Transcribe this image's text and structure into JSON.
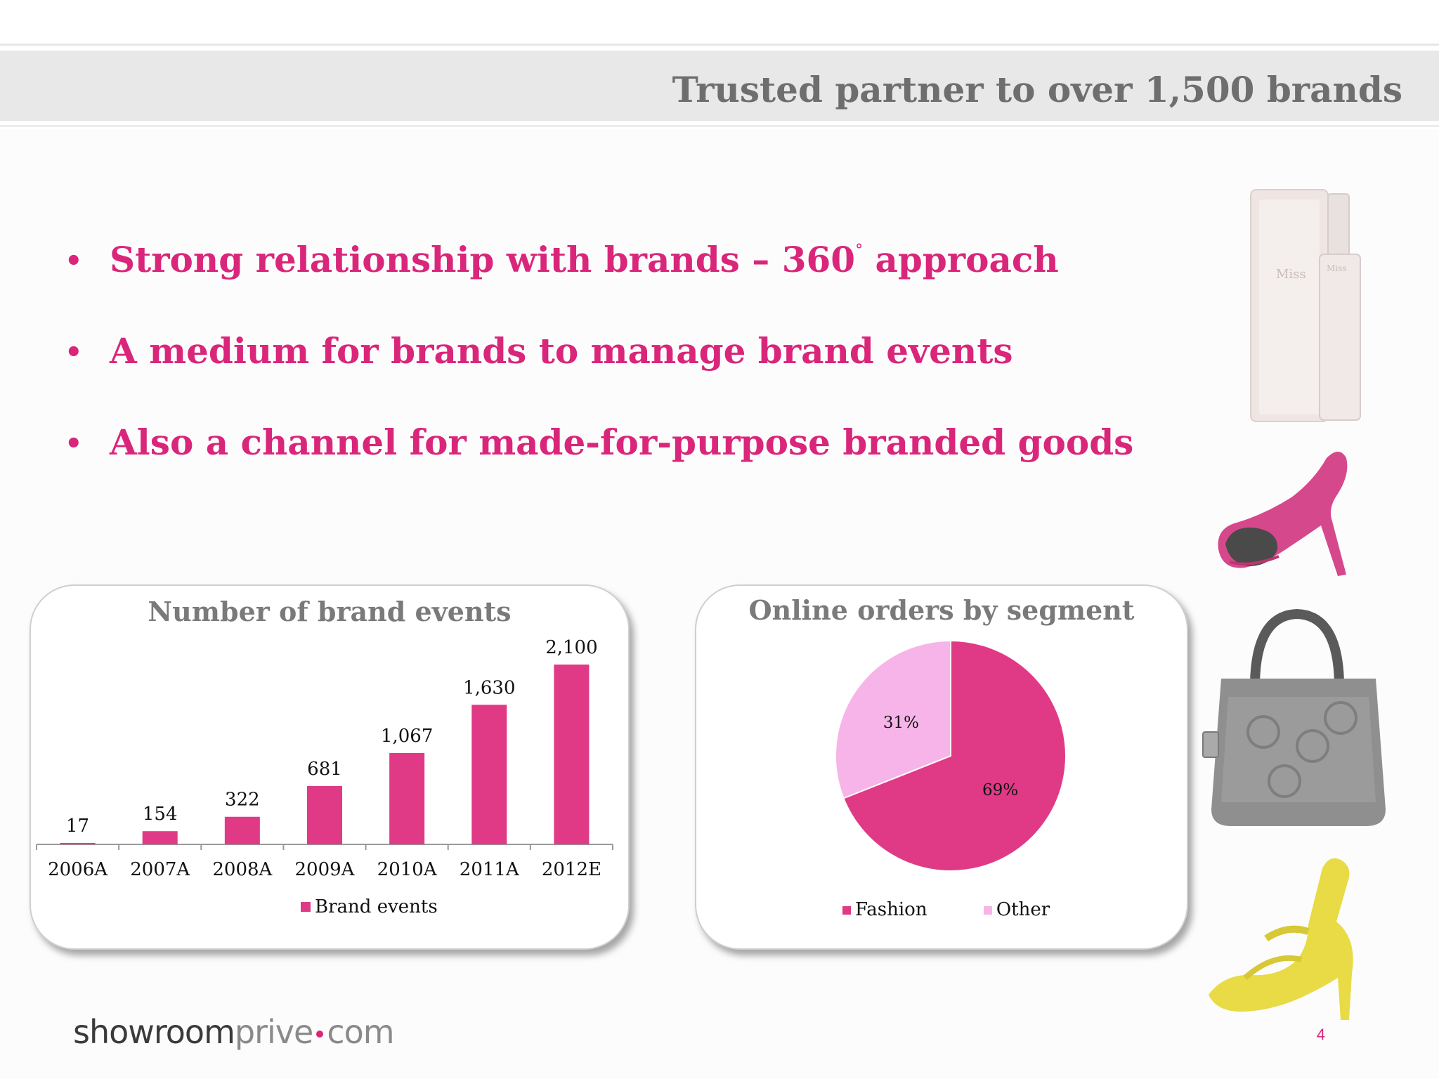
{
  "slide": {
    "title": "Trusted partner to over 1,500 brands",
    "page_number": "4",
    "accent_color": "#d9267a",
    "bullet_symbol": "•"
  },
  "bullets": [
    {
      "text": "Strong relationship with brands – 360",
      "sup": "°",
      "text_after": " approach"
    },
    {
      "text": "A medium for brands to manage brand events"
    },
    {
      "text": "Also a channel for made-for-purpose branded goods"
    }
  ],
  "logo": {
    "part1": "showroom",
    "part2": "prive",
    "part3": "com"
  },
  "product_images": [
    {
      "icon": "perfume-bottle-icon"
    },
    {
      "icon": "pink-high-heel-icon"
    },
    {
      "icon": "grey-handbag-icon"
    },
    {
      "icon": "yellow-sandal-icon"
    }
  ],
  "chart_data": [
    {
      "type": "bar",
      "title": "Number of brand events",
      "categories": [
        "2006A",
        "2007A",
        "2008A",
        "2009A",
        "2010A",
        "2011A",
        "2012E"
      ],
      "series": [
        {
          "name": "Brand events",
          "values": [
            17,
            154,
            322,
            681,
            1067,
            1630,
            2100
          ],
          "color": "#e03a86"
        }
      ],
      "data_labels": [
        "17",
        "154",
        "322",
        "681",
        "1,067",
        "1,630",
        "2,100"
      ],
      "ylim": [
        0,
        2100
      ],
      "grid": false,
      "legend": "bottom"
    },
    {
      "type": "pie",
      "title": "Online orders by segment",
      "labels": [
        "Fashion",
        "Other"
      ],
      "values": [
        69,
        31
      ],
      "data_labels": [
        "69%",
        "31%"
      ],
      "colors": [
        "#e03a86",
        "#f6b4e8"
      ],
      "legend": "bottom"
    }
  ]
}
